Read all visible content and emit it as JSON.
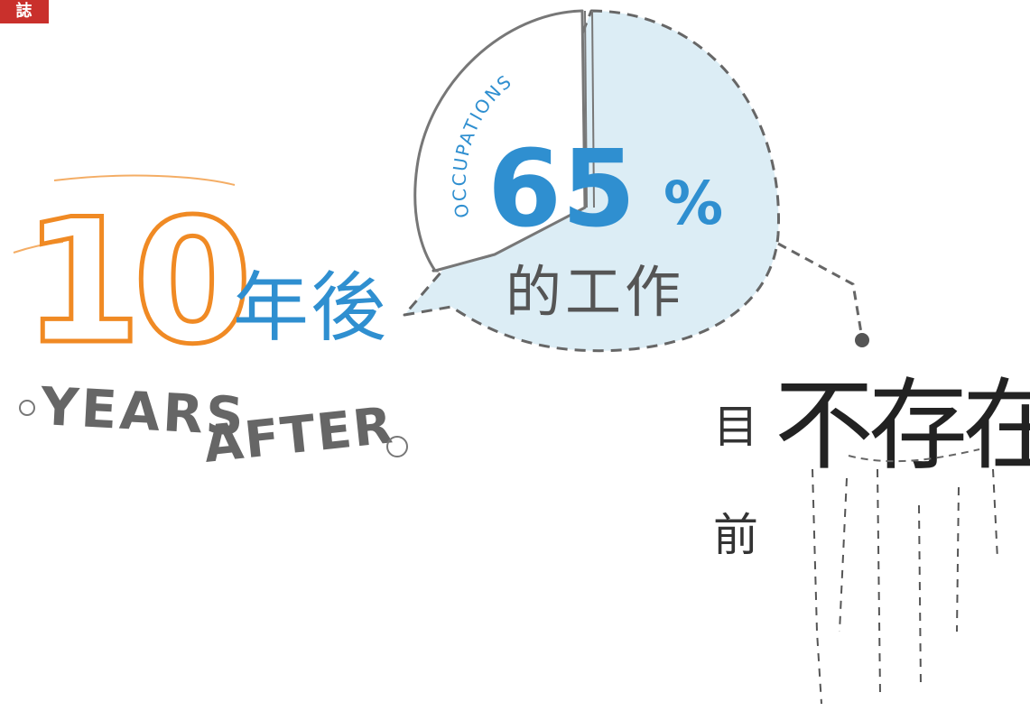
{
  "logo": {
    "text": "誌"
  },
  "headline": {
    "number": "10",
    "suffix": "年後",
    "years_word": "YEARS",
    "after_word": "AFTER"
  },
  "bubble": {
    "arc_label": "OCCUPATIONS",
    "percent_number": "65",
    "percent_sign": "%",
    "caption": "的工作",
    "share": 65
  },
  "result": {
    "prefix": "目前",
    "statement": "不存在"
  },
  "colors": {
    "orange": "#f08a24",
    "blue": "#2f8fd0",
    "bubble_fill": "#dcedf5",
    "dark": "#333333",
    "gray": "#666666"
  }
}
